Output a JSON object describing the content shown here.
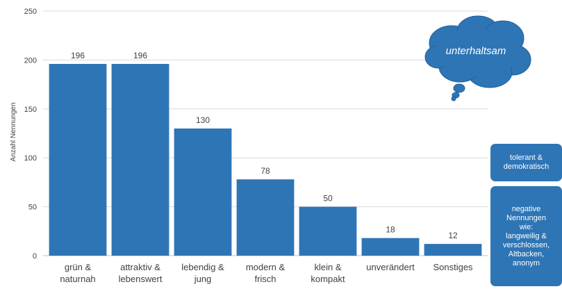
{
  "chart_data": {
    "type": "bar",
    "ylabel": "Anzahl Nennungen",
    "ylim": [
      0,
      250
    ],
    "yticks": [
      0,
      50,
      100,
      150,
      200,
      250
    ],
    "categories": [
      [
        "grün &",
        "naturnah"
      ],
      [
        "attraktiv &",
        "lebenswert"
      ],
      [
        "lebendig &",
        "jung"
      ],
      [
        "modern &",
        "frisch"
      ],
      [
        "klein &",
        "kompakt"
      ],
      [
        "unverändert"
      ],
      [
        "Sonstiges"
      ]
    ],
    "values": [
      196,
      196,
      130,
      78,
      50,
      18,
      12
    ],
    "bar_color": "#2e75b6",
    "grid": true
  },
  "annotations": {
    "cloud": "unterhaltsam",
    "box_tolerant": "tolerant &\ndemokratisch",
    "box_negative": "negative\nNennungen\nwie:\nlangweilig &\nverschlossen,\nAltbacken,\nanonym"
  }
}
